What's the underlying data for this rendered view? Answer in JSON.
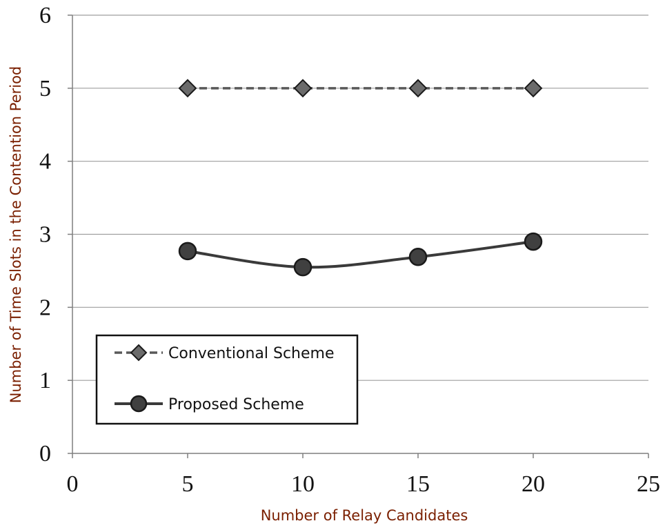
{
  "chart_data": {
    "type": "line",
    "title": "",
    "xlabel": "Number of Relay Candidates",
    "ylabel": "Number of Time Slots in the Contention Period",
    "xlim": [
      0,
      25
    ],
    "ylim": [
      0,
      6
    ],
    "xticks": [
      0,
      5,
      10,
      15,
      20,
      25
    ],
    "yticks": [
      0,
      1,
      2,
      3,
      4,
      5,
      6
    ],
    "grid": "horizontal",
    "legend_position": "bottom-left",
    "series": [
      {
        "name": "Conventional Scheme",
        "x": [
          5,
          10,
          15,
          20
        ],
        "y": [
          5,
          5,
          5,
          5
        ],
        "line_style": "dashed",
        "marker": "diamond",
        "color": "#595959",
        "marker_color": "#6b6b6b"
      },
      {
        "name": "Proposed Scheme",
        "x": [
          5,
          10,
          15,
          20
        ],
        "y": [
          2.77,
          2.55,
          2.69,
          2.9
        ],
        "line_style": "solid",
        "marker": "circle",
        "color": "#3a3a3a",
        "marker_color": "#404040"
      }
    ]
  }
}
